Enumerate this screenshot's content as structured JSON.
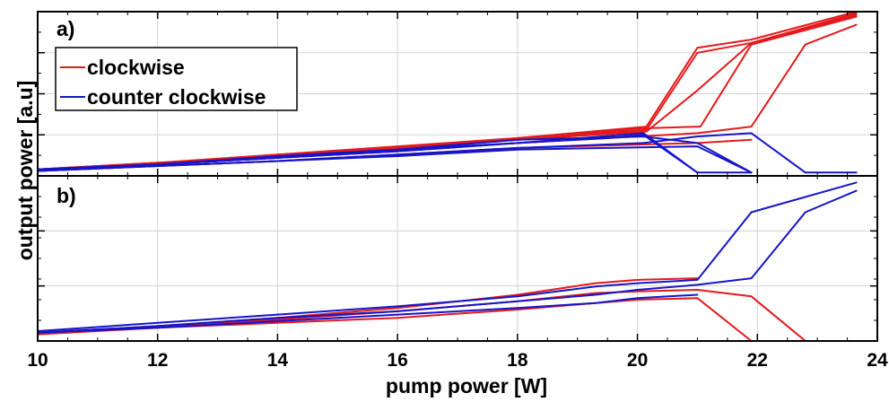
{
  "chart_data": {
    "type": "line",
    "xlabel": "pump power [W]",
    "ylabel": "output power [a.u]",
    "xlim": [
      10,
      24
    ],
    "xticks": [
      "10",
      "12",
      "14",
      "16",
      "18",
      "20",
      "22",
      "24"
    ],
    "grid": true,
    "legend": {
      "placement": "top-left",
      "panel": "a)"
    },
    "colors": {
      "clockwise": "#e31a1c",
      "counter_clockwise": "#1515c8",
      "grid": "#d3d3d3",
      "axis": "#000000"
    },
    "panels": [
      {
        "label": "a)",
        "ylim": [
          0,
          1
        ],
        "series": [
          {
            "name": "clockwise",
            "color": "#e31a1c",
            "x": [
              10,
              12,
              14,
              16,
              18,
              20.15,
              21,
              21.9,
              23.65
            ],
            "y": [
              0.04,
              0.08,
              0.13,
              0.18,
              0.23,
              0.3,
              0.78,
              0.83,
              1.0
            ]
          },
          {
            "name": "",
            "color": "#e31a1c",
            "x": [
              10,
              12,
              14,
              16,
              18,
              20.15,
              21,
              21.9,
              23.65
            ],
            "y": [
              0.04,
              0.08,
              0.12,
              0.17,
              0.22,
              0.28,
              0.75,
              0.81,
              0.98
            ]
          },
          {
            "name": "",
            "color": "#e31a1c",
            "x": [
              10,
              12,
              14,
              16,
              18,
              20.15,
              21.05,
              21.9,
              23.65
            ],
            "y": [
              0.04,
              0.08,
              0.12,
              0.17,
              0.23,
              0.29,
              0.3,
              0.8,
              0.97
            ]
          },
          {
            "name": "",
            "color": "#e31a1c",
            "x": [
              10,
              12,
              14,
              16,
              18,
              20.15,
              21,
              21.9,
              23.65
            ],
            "y": [
              0.04,
              0.07,
              0.11,
              0.16,
              0.22,
              0.27,
              0.52,
              0.81,
              0.99
            ]
          },
          {
            "name": "",
            "color": "#e31a1c",
            "x": [
              10,
              12,
              14,
              16,
              18,
              21,
              21.9,
              22.8,
              23.65
            ],
            "y": [
              0.04,
              0.07,
              0.11,
              0.15,
              0.2,
              0.26,
              0.3,
              0.8,
              0.92
            ]
          },
          {
            "name": "",
            "color": "#e31a1c",
            "x": [
              10,
              12,
              14,
              16,
              18,
              21,
              21.9
            ],
            "y": [
              0.03,
              0.06,
              0.09,
              0.13,
              0.17,
              0.2,
              0.22
            ]
          },
          {
            "name": "counter clockwise",
            "color": "#1515c8",
            "x": [
              10,
              12,
              14,
              16,
              18,
              20.1,
              21
            ],
            "y": [
              0.03,
              0.07,
              0.11,
              0.15,
              0.2,
              0.26,
              0.02
            ]
          },
          {
            "name": "",
            "color": "#1515c8",
            "x": [
              10,
              12,
              14,
              16,
              18,
              20.1,
              21,
              21.9
            ],
            "y": [
              0.04,
              0.07,
              0.12,
              0.16,
              0.22,
              0.24,
              0.2,
              0.02
            ]
          },
          {
            "name": "",
            "color": "#1515c8",
            "x": [
              10,
              12,
              14,
              16,
              18,
              19.5,
              20.1,
              21,
              21.9
            ],
            "y": [
              0.04,
              0.07,
              0.11,
              0.16,
              0.2,
              0.23,
              0.25,
              0.02,
              0.02
            ]
          },
          {
            "name": "",
            "color": "#1515c8",
            "x": [
              10,
              12,
              14,
              16,
              18,
              20.1,
              21,
              21.9,
              22.8,
              23.65
            ],
            "y": [
              0.03,
              0.06,
              0.09,
              0.13,
              0.17,
              0.2,
              0.24,
              0.26,
              0.02,
              0.02
            ]
          },
          {
            "name": "",
            "color": "#1515c8",
            "x": [
              10,
              12,
              14,
              16,
              18,
              21,
              21.9
            ],
            "y": [
              0.03,
              0.06,
              0.09,
              0.12,
              0.16,
              0.18,
              0.02
            ]
          }
        ]
      },
      {
        "label": "b)",
        "ylim": [
          0,
          1
        ],
        "series": [
          {
            "name": "",
            "color": "#e31a1c",
            "x": [
              10,
              12,
              14,
              16,
              18,
              19.3,
              20,
              21,
              21.9,
              22.8,
              23.65
            ],
            "y": [
              0.05,
              0.09,
              0.13,
              0.18,
              0.24,
              0.29,
              0.3,
              0.31,
              0.27,
              0.0,
              0.0
            ]
          },
          {
            "name": "",
            "color": "#e31a1c",
            "x": [
              10,
              12,
              14,
              16,
              18,
              19.3,
              20,
              21,
              21.9,
              23.65
            ],
            "y": [
              0.04,
              0.08,
              0.11,
              0.14,
              0.19,
              0.23,
              0.25,
              0.26,
              0.0,
              0.0
            ]
          },
          {
            "name": "",
            "color": "#e31a1c",
            "x": [
              10,
              12,
              14,
              16,
              18,
              19.3,
              20,
              21
            ],
            "y": [
              0.04,
              0.09,
              0.14,
              0.2,
              0.28,
              0.35,
              0.37,
              0.38
            ]
          },
          {
            "name": "",
            "color": "#1515c8",
            "x": [
              10,
              12,
              14,
              16,
              18,
              19.3,
              20,
              21,
              21.9,
              23.65
            ],
            "y": [
              0.06,
              0.11,
              0.16,
              0.21,
              0.27,
              0.33,
              0.35,
              0.37,
              0.78,
              0.96
            ]
          },
          {
            "name": "",
            "color": "#1515c8",
            "x": [
              10,
              12,
              14,
              16,
              18,
              19.3,
              20,
              21,
              21.9,
              22.8,
              23.65
            ],
            "y": [
              0.05,
              0.09,
              0.14,
              0.18,
              0.24,
              0.28,
              0.31,
              0.34,
              0.38,
              0.78,
              0.91
            ]
          },
          {
            "name": "",
            "color": "#1515c8",
            "x": [
              10,
              12,
              14,
              16,
              18,
              19.3,
              20,
              21
            ],
            "y": [
              0.05,
              0.08,
              0.12,
              0.16,
              0.2,
              0.23,
              0.26,
              0.28
            ]
          }
        ]
      }
    ]
  }
}
